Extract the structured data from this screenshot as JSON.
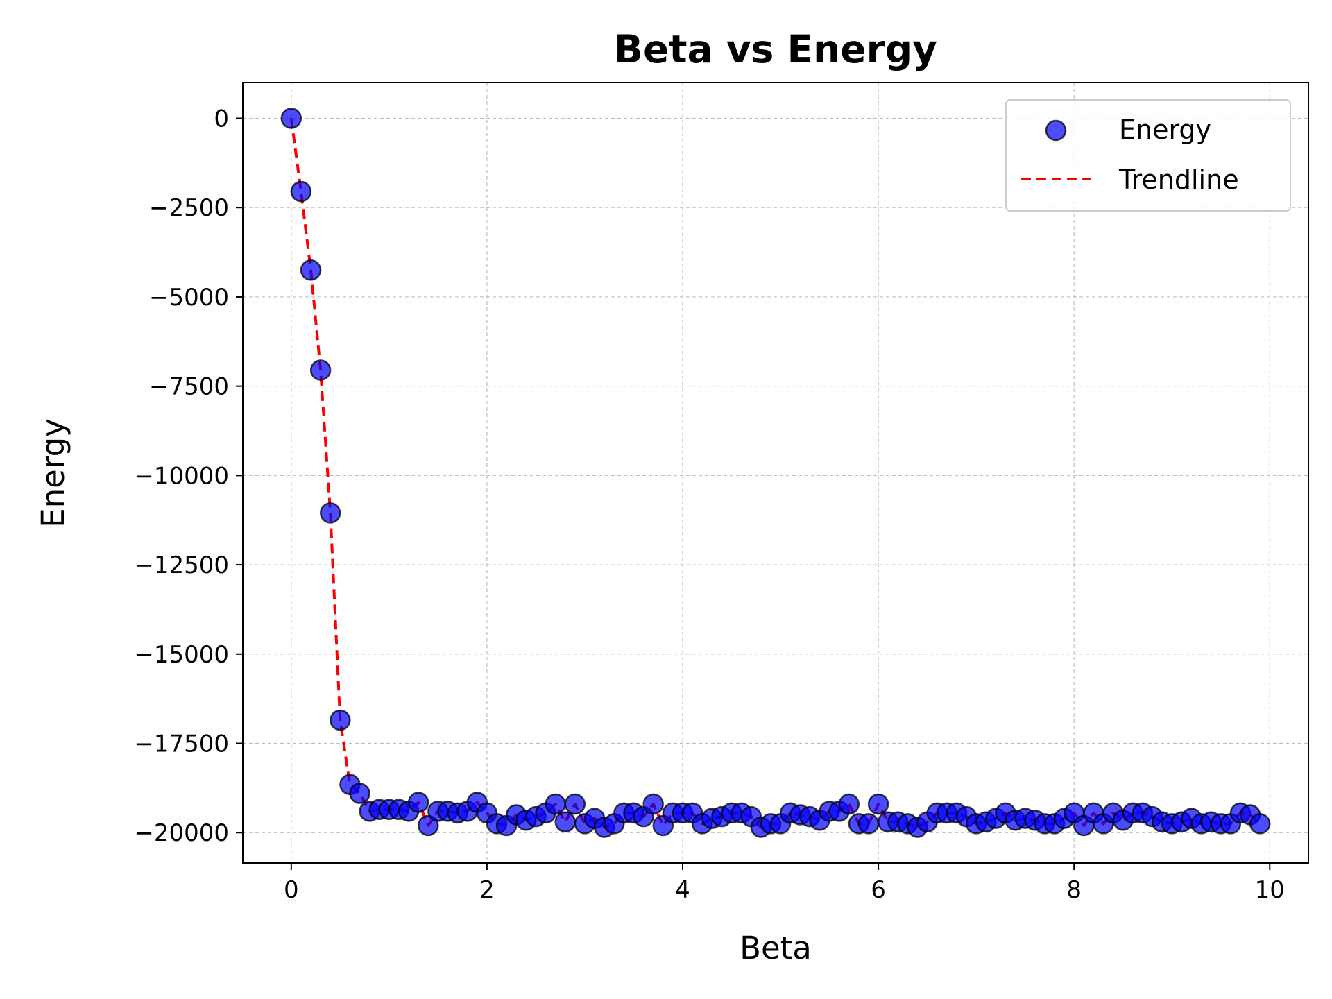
{
  "chart_data": {
    "type": "scatter",
    "title": "Beta vs Energy",
    "xlabel": "Beta",
    "ylabel": "Energy",
    "xlim": [
      -0.495,
      10.395
    ],
    "ylim": [
      -20850,
      1000
    ],
    "xticks": [
      0,
      2,
      4,
      6,
      8,
      10
    ],
    "xtick_labels": [
      "0",
      "2",
      "4",
      "6",
      "8",
      "10"
    ],
    "yticks": [
      0,
      -2500,
      -5000,
      -7500,
      -10000,
      -12500,
      -15000,
      -17500,
      -20000
    ],
    "ytick_labels": [
      "0",
      "−2500",
      "−5000",
      "−7500",
      "−10000",
      "−12500",
      "−15000",
      "−17500",
      "−20000"
    ],
    "grid": true,
    "legend_position": "top-right",
    "series": [
      {
        "name": "Energy",
        "kind": "scatter",
        "color": "#0000ff",
        "edge_color": "#000000",
        "x": [
          0.0,
          0.1,
          0.2,
          0.3,
          0.4,
          0.5,
          0.6,
          0.7,
          0.8,
          0.9,
          1.0,
          1.1,
          1.2,
          1.3,
          1.4,
          1.5,
          1.6,
          1.7,
          1.8,
          1.9,
          2.0,
          2.1,
          2.2,
          2.3,
          2.4,
          2.5,
          2.6,
          2.7,
          2.8,
          2.9,
          3.0,
          3.1,
          3.2,
          3.3,
          3.4,
          3.5,
          3.6,
          3.7,
          3.8,
          3.9,
          4.0,
          4.1,
          4.2,
          4.3,
          4.4,
          4.5,
          4.6,
          4.7,
          4.8,
          4.9,
          5.0,
          5.1,
          5.2,
          5.3,
          5.4,
          5.5,
          5.6,
          5.7,
          5.8,
          5.9,
          6.0,
          6.1,
          6.2,
          6.3,
          6.4,
          6.5,
          6.6,
          6.7,
          6.8,
          6.9,
          7.0,
          7.1,
          7.2,
          7.3,
          7.4,
          7.5,
          7.6,
          7.7,
          7.8,
          7.9,
          8.0,
          8.1,
          8.2,
          8.3,
          8.4,
          8.5,
          8.6,
          8.7,
          8.8,
          8.9,
          9.0,
          9.1,
          9.2,
          9.3,
          9.4,
          9.5,
          9.6,
          9.7,
          9.8,
          9.9
        ],
        "y": [
          0,
          -2050,
          -4250,
          -7050,
          -11050,
          -16850,
          -18650,
          -18900,
          -19400,
          -19350,
          -19350,
          -19350,
          -19400,
          -19150,
          -19800,
          -19400,
          -19400,
          -19450,
          -19400,
          -19150,
          -19450,
          -19750,
          -19800,
          -19500,
          -19650,
          -19550,
          -19450,
          -19200,
          -19700,
          -19200,
          -19750,
          -19600,
          -19850,
          -19750,
          -19450,
          -19450,
          -19550,
          -19200,
          -19800,
          -19450,
          -19450,
          -19450,
          -19750,
          -19600,
          -19550,
          -19450,
          -19450,
          -19550,
          -19850,
          -19750,
          -19750,
          -19450,
          -19500,
          -19550,
          -19650,
          -19400,
          -19400,
          -19200,
          -19750,
          -19750,
          -19200,
          -19700,
          -19700,
          -19750,
          -19850,
          -19700,
          -19450,
          -19450,
          -19450,
          -19550,
          -19750,
          -19700,
          -19600,
          -19450,
          -19650,
          -19600,
          -19650,
          -19750,
          -19750,
          -19600,
          -19450,
          -19800,
          -19450,
          -19750,
          -19450,
          -19650,
          -19450,
          -19450,
          -19550,
          -19700,
          -19750,
          -19700,
          -19600,
          -19750,
          -19700,
          -19750,
          -19750,
          -19450,
          -19500,
          -19750
        ]
      },
      {
        "name": "Trendline",
        "kind": "line",
        "color": "#ff0000",
        "line_style": "dashed",
        "x": [
          0.0,
          0.1,
          0.2,
          0.3,
          0.4,
          0.5,
          0.6,
          0.7,
          0.8,
          0.9,
          1.0,
          1.1,
          1.2,
          1.3,
          1.4,
          1.5,
          1.6,
          1.7,
          1.8,
          1.9,
          2.0,
          2.1,
          2.2,
          2.3,
          2.4,
          2.5,
          2.6,
          2.7,
          2.8,
          2.9,
          3.0,
          3.1,
          3.2,
          3.3,
          3.4,
          3.5,
          3.6,
          3.7,
          3.8,
          3.9,
          4.0,
          4.1,
          4.2,
          4.3,
          4.4,
          4.5,
          4.6,
          4.7,
          4.8,
          4.9,
          5.0,
          5.1,
          5.2,
          5.3,
          5.4,
          5.5,
          5.6,
          5.7,
          5.8,
          5.9,
          6.0,
          6.1,
          6.2,
          6.3,
          6.4,
          6.5,
          6.6,
          6.7,
          6.8,
          6.9,
          7.0,
          7.1,
          7.2,
          7.3,
          7.4,
          7.5,
          7.6,
          7.7,
          7.8,
          7.9,
          8.0,
          8.1,
          8.2,
          8.3,
          8.4,
          8.5,
          8.6,
          8.7,
          8.8,
          8.9,
          9.0,
          9.1,
          9.2,
          9.3,
          9.4,
          9.5,
          9.6,
          9.7,
          9.8,
          9.9
        ],
        "y": [
          0,
          -2050,
          -4250,
          -7050,
          -11050,
          -16850,
          -18650,
          -18900,
          -19400,
          -19350,
          -19350,
          -19350,
          -19400,
          -19150,
          -19800,
          -19400,
          -19400,
          -19450,
          -19400,
          -19150,
          -19450,
          -19750,
          -19800,
          -19500,
          -19650,
          -19550,
          -19450,
          -19200,
          -19700,
          -19200,
          -19750,
          -19600,
          -19850,
          -19750,
          -19450,
          -19450,
          -19550,
          -19200,
          -19800,
          -19450,
          -19450,
          -19450,
          -19750,
          -19600,
          -19550,
          -19450,
          -19450,
          -19550,
          -19850,
          -19750,
          -19750,
          -19450,
          -19500,
          -19550,
          -19650,
          -19400,
          -19400,
          -19200,
          -19750,
          -19750,
          -19200,
          -19700,
          -19700,
          -19750,
          -19850,
          -19700,
          -19450,
          -19450,
          -19450,
          -19550,
          -19750,
          -19700,
          -19600,
          -19450,
          -19650,
          -19600,
          -19650,
          -19750,
          -19750,
          -19600,
          -19450,
          -19800,
          -19450,
          -19750,
          -19450,
          -19650,
          -19450,
          -19450,
          -19550,
          -19700,
          -19750,
          -19700,
          -19600,
          -19750,
          -19700,
          -19750,
          -19750,
          -19450,
          -19500,
          -19750
        ]
      }
    ]
  }
}
